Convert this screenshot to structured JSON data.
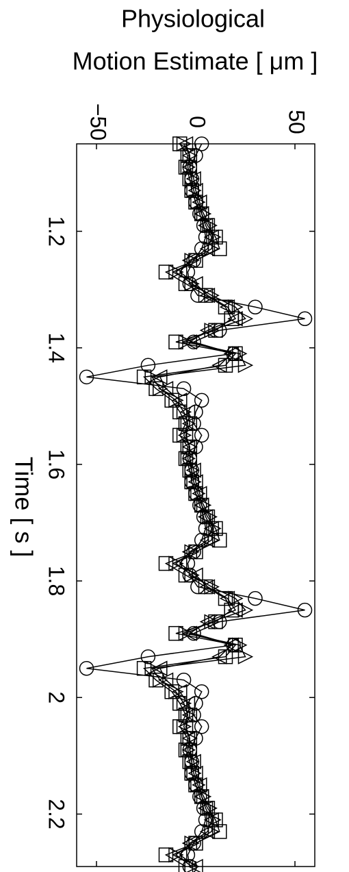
{
  "chart_data": {
    "type": "line",
    "ylabel": [
      "Physiological",
      "Motion Estimate [ μm ]"
    ],
    "xlabel": "Time [ s ]",
    "x": [
      1.05,
      1.07,
      1.09,
      1.11,
      1.13,
      1.15,
      1.17,
      1.19,
      1.21,
      1.23,
      1.25,
      1.27,
      1.29,
      1.31,
      1.33,
      1.35,
      1.37,
      1.39,
      1.41,
      1.43,
      1.45,
      1.47,
      1.49,
      1.51,
      1.53,
      1.55,
      1.57,
      1.59,
      1.61,
      1.63,
      1.65,
      1.67,
      1.69,
      1.71,
      1.73,
      1.75,
      1.77,
      1.79,
      1.81,
      1.83,
      1.85,
      1.87,
      1.89,
      1.91,
      1.93,
      1.95,
      1.97,
      1.99,
      2.01,
      2.03,
      2.05,
      2.07,
      2.09,
      2.11,
      2.13,
      2.15,
      2.17,
      2.19,
      2.21,
      2.23,
      2.25,
      2.27,
      2.29
    ],
    "series": [
      {
        "marker": "o",
        "color": "#000000",
        "values": [
          3,
          0,
          -3,
          -2,
          -2,
          0,
          2,
          4,
          5,
          3,
          -1,
          -4,
          -3,
          1,
          30,
          55,
          12,
          -1,
          19,
          -24,
          -55,
          -6,
          3,
          0,
          -1,
          3,
          0,
          -3,
          -2,
          -2,
          0,
          2,
          4,
          5,
          3,
          -1,
          -4,
          -3,
          1,
          30,
          55,
          12,
          -1,
          19,
          -24,
          -55,
          -6,
          3,
          0,
          -1,
          3,
          0,
          -3,
          -2,
          -2,
          0,
          2,
          4,
          5,
          3,
          -1,
          -4,
          -3
        ]
      },
      {
        "marker": "s",
        "color": "#000000",
        "values": [
          -8,
          -4,
          -5,
          -3,
          -2,
          0,
          3,
          6,
          10,
          12,
          0,
          -15,
          -5,
          5,
          15,
          18,
          10,
          -10,
          20,
          15,
          -26,
          -20,
          -12,
          -8,
          -5,
          -8,
          -4,
          -5,
          -3,
          -2,
          0,
          3,
          6,
          10,
          12,
          0,
          -15,
          -5,
          5,
          15,
          18,
          10,
          -10,
          20,
          15,
          -26,
          -20,
          -12,
          -8,
          -5,
          -8,
          -4,
          -5,
          -3,
          -2,
          0,
          3,
          6,
          10,
          12,
          0,
          -15,
          -5
        ]
      },
      {
        "marker": ">",
        "color": "#000000",
        "values": [
          -6,
          -3,
          -4,
          -2,
          -1,
          1,
          4,
          7,
          9,
          8,
          -2,
          -10,
          -2,
          8,
          20,
          25,
          8,
          -5,
          22,
          25,
          -22,
          -18,
          -10,
          -6,
          -4,
          -6,
          -3,
          -4,
          -2,
          -1,
          1,
          4,
          7,
          9,
          8,
          -2,
          -10,
          -2,
          8,
          20,
          25,
          8,
          -5,
          22,
          25,
          -22,
          -18,
          -10,
          -6,
          -4,
          -6,
          -3,
          -4,
          -2,
          -1,
          1,
          4,
          7,
          9,
          8,
          -2,
          -10,
          -2
        ]
      },
      {
        "marker": "<",
        "color": "#000000",
        "values": [
          -5,
          -3,
          -3,
          -1,
          0,
          2,
          3,
          5,
          8,
          6,
          -3,
          -8,
          0,
          6,
          16,
          20,
          6,
          -3,
          18,
          12,
          -18,
          -15,
          -8,
          -4,
          -3,
          -5,
          -3,
          -3,
          -1,
          0,
          2,
          3,
          5,
          8,
          6,
          -3,
          -8,
          0,
          6,
          16,
          20,
          6,
          -3,
          18,
          12,
          -18,
          -15,
          -8,
          -4,
          -3,
          -5,
          -3,
          -3,
          -1,
          0,
          2,
          3,
          5,
          8,
          6,
          -3,
          -8,
          0
        ]
      }
    ],
    "xlim": [
      1.05,
      2.29
    ],
    "xticks": [
      1.2,
      1.4,
      1.6,
      1.8,
      2,
      2.2
    ],
    "ylim": [
      -60,
      60
    ],
    "yticks": [
      {
        "value": -50,
        "label": "−50"
      },
      0,
      50
    ]
  }
}
